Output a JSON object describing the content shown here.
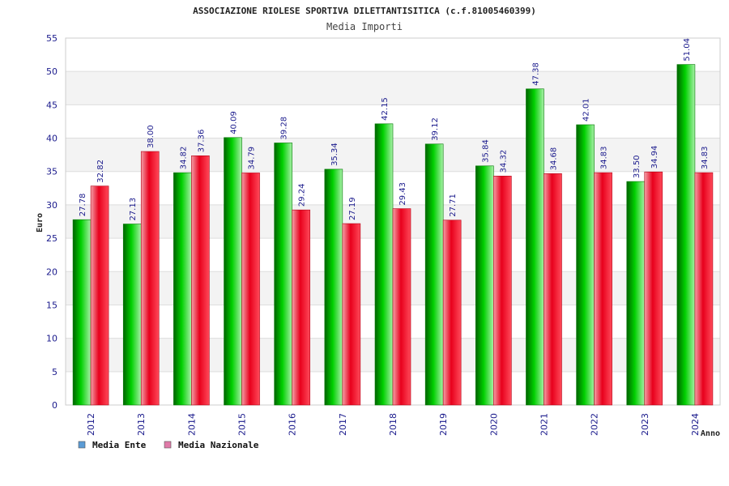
{
  "chart_data": {
    "type": "bar",
    "title": "ASSOCIAZIONE RIOLESE SPORTIVA DILETTANTISITICA (c.f.81005460399)",
    "subtitle": "Media Importi",
    "xlabel": "Anno",
    "ylabel": "Euro",
    "ylim": [
      0,
      55
    ],
    "yticks": [
      0,
      5,
      10,
      15,
      20,
      25,
      30,
      35,
      40,
      45,
      50,
      55
    ],
    "grid": true,
    "legend_position": "bottom-left",
    "categories": [
      "2012",
      "2013",
      "2014",
      "2015",
      "2016",
      "2017",
      "2018",
      "2019",
      "2020",
      "2021",
      "2022",
      "2023",
      "2024"
    ],
    "series": [
      {
        "name": "Media Ente",
        "legend_color": "#5b9bd5",
        "bar_color": "#00b400",
        "values": [
          27.78,
          27.13,
          34.82,
          40.09,
          39.28,
          35.34,
          42.15,
          39.12,
          35.84,
          47.38,
          42.01,
          33.5,
          51.04
        ],
        "labels": [
          "27.78",
          "27.13",
          "34.82",
          "40.09",
          "39.28",
          "35.34",
          "42.15",
          "39.12",
          "35.84",
          "47.38",
          "42.01",
          "33.50",
          "51.04"
        ]
      },
      {
        "name": "Media Nazionale",
        "legend_color": "#e07aa8",
        "bar_color": "#e8001c",
        "values": [
          32.82,
          38.0,
          37.36,
          34.79,
          29.24,
          27.19,
          29.43,
          27.71,
          34.32,
          34.68,
          34.83,
          34.94,
          34.83
        ],
        "labels": [
          "32.82",
          "38.00",
          "37.36",
          "34.79",
          "29.24",
          "27.19",
          "29.43",
          "27.71",
          "34.32",
          "34.68",
          "34.83",
          "34.94",
          "34.83"
        ]
      }
    ]
  }
}
